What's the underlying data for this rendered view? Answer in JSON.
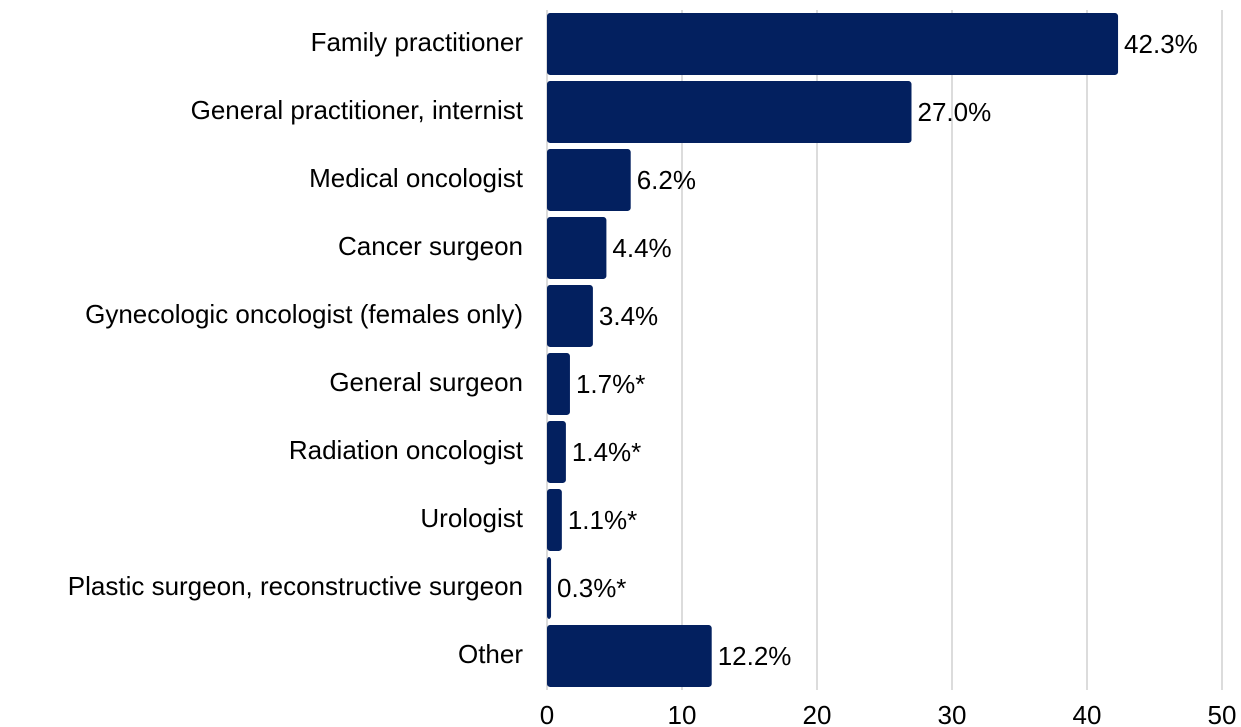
{
  "chart_data": {
    "type": "bar",
    "orientation": "horizontal",
    "categories": [
      "Family practitioner",
      "General practitioner, internist",
      "Medical oncologist",
      "Cancer surgeon",
      "Gynecologic oncologist (females only)",
      "General surgeon",
      "Radiation oncologist",
      "Urologist",
      "Plastic surgeon, reconstructive surgeon",
      "Other"
    ],
    "values": [
      42.3,
      27.0,
      6.2,
      4.4,
      3.4,
      1.7,
      1.4,
      1.1,
      0.3,
      12.2
    ],
    "value_labels": [
      "42.3%",
      "27.0%",
      "6.2%",
      "4.4%",
      "3.4%",
      "1.7%*",
      "1.4%*",
      "1.1%*",
      "0.3%*",
      "12.2%"
    ],
    "color": "#03205f",
    "xlim": [
      0,
      50
    ],
    "xticks": [
      0,
      10,
      20,
      30,
      40,
      50
    ],
    "grid": true
  }
}
